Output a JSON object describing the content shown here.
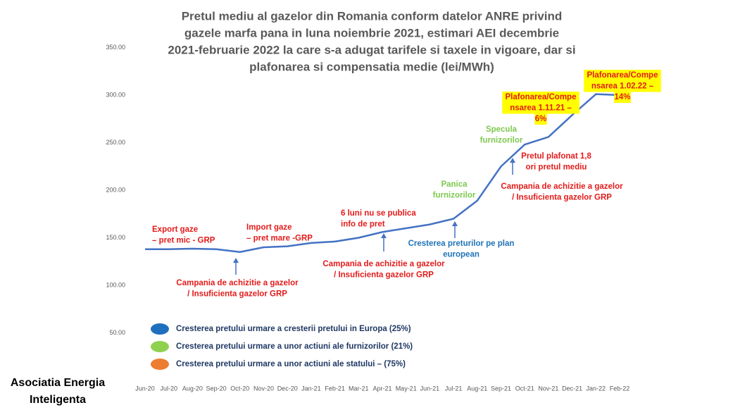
{
  "chart_data": {
    "type": "line",
    "title": [
      "Pretul mediu al gazelor din Romania conform datelor ANRE privind",
      "gazele marfa pana in luna noiembrie  2021, estimari AEI decembrie",
      "2021-februarie 2022 la care s-a adugat tarifele si taxele in vigoare, dar si",
      "plafonarea si compensatia medie (lei/MWh)"
    ],
    "categories": [
      "Jun-20",
      "Jul-20",
      "Aug-20",
      "Sep-20",
      "Oct-20",
      "Nov-20",
      "Dec-20",
      "Jan-21",
      "Feb-21",
      "Mar-21",
      "Apr-21",
      "May-21",
      "Jun-21",
      "Jul-21",
      "Aug-21",
      "Sep-21",
      "Oct-21",
      "Nov-21",
      "Dec-21",
      "Jan-22",
      "Feb-22"
    ],
    "series": [
      {
        "color": "#4472c4",
        "values": [
          138,
          138,
          138.5,
          138,
          135,
          140,
          141,
          144.5,
          146,
          150,
          156,
          160,
          164,
          170,
          189,
          225,
          248,
          256,
          279,
          301,
          300
        ]
      }
    ],
    "ylim": [
      0,
      350
    ],
    "yticks": [
      {
        "value": 50,
        "label": "50.00"
      },
      {
        "value": 100,
        "label": "100.00"
      },
      {
        "value": 150,
        "label": "150.00"
      },
      {
        "value": 200,
        "label": "200.00"
      },
      {
        "value": 250,
        "label": "250.00"
      },
      {
        "value": 300,
        "label": "300.00"
      },
      {
        "value": 350,
        "label": "350.00"
      }
    ],
    "annotations": [
      {
        "lines": [
          "Export gaze",
          "– pret mic - GRP"
        ],
        "color": "#e31b1b"
      },
      {
        "lines": [
          "Import gaze",
          "– pret mare -GRP"
        ],
        "color": "#e31b1b"
      },
      {
        "lines": [
          "Campania de achizitie a gazelor",
          "/ Insuficienta gazelor GRP"
        ],
        "color": "#e31b1b"
      },
      {
        "lines": [
          "6 luni nu se publica",
          "info de pret"
        ],
        "color": "#e31b1b"
      },
      {
        "lines": [
          "Campania de achizitie a gazelor",
          "/ Insuficienta gazelor GRP"
        ],
        "color": "#e31b1b"
      },
      {
        "lines": [
          "Cresterea preturilor pe plan",
          "european"
        ],
        "color": "#1f73b7"
      },
      {
        "lines": [
          "Panica",
          "furnizorilor"
        ],
        "color": "#7ec850"
      },
      {
        "lines": [
          "Specula",
          "furnizorilor"
        ],
        "color": "#7ec850"
      },
      {
        "lines": [
          "Plafonarea/Compe",
          "nsarea 1.11.21 –",
          "6%"
        ],
        "color": "#e31b1b",
        "highlight": "#ffff00"
      },
      {
        "lines": [
          "Pretul plafonat 1,8",
          "ori pretul mediu"
        ],
        "color": "#e31b1b"
      },
      {
        "lines": [
          "Campania de achizitie a gazelor",
          "/ Insuficienta gazelor GRP"
        ],
        "color": "#e31b1b"
      },
      {
        "lines": [
          "Plafonarea/Compe",
          "nsarea 1.02.22 –",
          "14%"
        ],
        "color": "#e31b1b",
        "highlight": "#ffff00"
      }
    ],
    "legend_items": [
      {
        "name": "Cresterea pretului urmare a cresterii pretului in Europa (25%)",
        "color": "#1f6fbf"
      },
      {
        "name": "Cresterea pretului urmare a unor actiuni ale furnizorilor (21%)",
        "color": "#8fd14f"
      },
      {
        "name": "Cresterea pretului urmare a unor actiuni ale statului – (75%)",
        "color": "#ed7d31"
      }
    ],
    "footer": [
      "Asociatia Energia",
      "Inteligenta"
    ]
  }
}
